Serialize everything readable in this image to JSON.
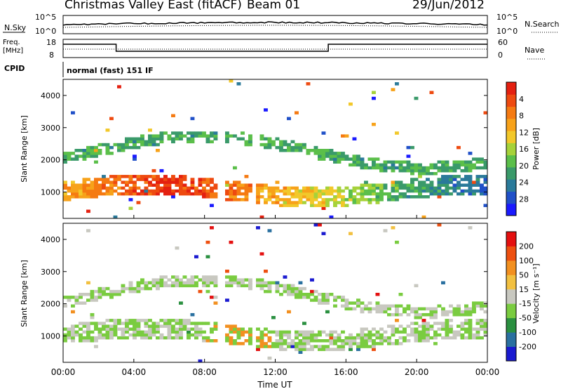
{
  "header": {
    "station": "Christmas Valley East (fitACF)",
    "beam": "Beam 01",
    "date": "29/Jun/2012"
  },
  "status_panels": {
    "nsky_label": "N.Sky",
    "nsearch_label": "N.Search",
    "noise_ticks_left": [
      "10^5",
      "10^0"
    ],
    "noise_ticks_right": [
      "10^5",
      "10^0"
    ],
    "freq_label": "Freq.",
    "freq_unit": "[MHz]",
    "freq_ticks": [
      "18",
      "8"
    ],
    "nave_label": "Nave",
    "nave_ticks": [
      "60",
      "0"
    ],
    "cpid_label": "CPID",
    "cpid_text": "normal (fast) 151 IF"
  },
  "chart_data": [
    {
      "type": "heatmap",
      "name": "power",
      "ylabel": "Slant Range [km]",
      "y_ticks": [
        "1000",
        "2000",
        "3000",
        "4000"
      ],
      "ylim": [
        180,
        4500
      ],
      "xlim": [
        0,
        24
      ],
      "colorbar_label": "Power [dB]",
      "colorbar_ticks": [
        "4",
        "8",
        "12",
        "16",
        "20",
        "24",
        "28"
      ],
      "colorbar_colors": [
        "#1a1aff",
        "#2050c8",
        "#2a7a9a",
        "#3a9a6a",
        "#5bbf4a",
        "#a6d23a",
        "#f2c82a",
        "#f7a21a",
        "#f57a12",
        "#ee4a10",
        "#e42010"
      ]
    },
    {
      "type": "heatmap",
      "name": "velocity",
      "ylabel": "Slant Range [km]",
      "y_ticks": [
        "1000",
        "2000",
        "3000",
        "4000"
      ],
      "ylim": [
        180,
        4500
      ],
      "xlim": [
        0,
        24
      ],
      "colorbar_label": "Velocity [m s⁻¹]",
      "colorbar_ticks": [
        "200",
        "100",
        "50",
        "15",
        "-15",
        "-50",
        "-100",
        "-200"
      ],
      "colorbar_colors": [
        "#1a1ad0",
        "#2a70a0",
        "#2a9040",
        "#7acc40",
        "#c8c8c0",
        "#f2c040",
        "#f29020",
        "#ee5010",
        "#e41010"
      ]
    }
  ],
  "x_axis": {
    "label": "Time UT",
    "ticks": [
      "00:00",
      "04:00",
      "08:00",
      "12:00",
      "16:00",
      "20:00",
      "00:00"
    ]
  }
}
